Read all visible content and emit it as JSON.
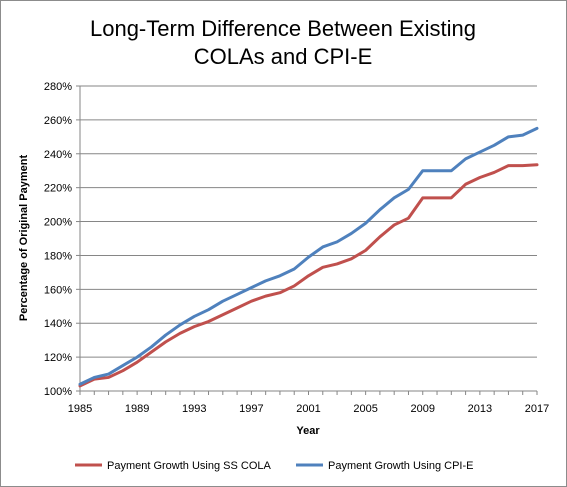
{
  "chart_data": {
    "type": "line",
    "title_lines": [
      "Long-Term Difference Between Existing",
      "COLAs and CPI-E"
    ],
    "xlabel": "Year",
    "ylabel": "Percentage of Original Payment",
    "xlim": [
      1985,
      2017
    ],
    "ylim": [
      100,
      280
    ],
    "x_ticks": [
      1985,
      1989,
      1993,
      1997,
      2001,
      2005,
      2009,
      2013,
      2017
    ],
    "y_ticks": [
      "100%",
      "120%",
      "140%",
      "160%",
      "180%",
      "200%",
      "220%",
      "240%",
      "260%",
      "280%"
    ],
    "grid": "horizontal",
    "legend_position": "bottom",
    "x": [
      1985,
      1986,
      1987,
      1988,
      1989,
      1990,
      1991,
      1992,
      1993,
      1994,
      1995,
      1996,
      1997,
      1998,
      1999,
      2000,
      2001,
      2002,
      2003,
      2004,
      2005,
      2006,
      2007,
      2008,
      2009,
      2010,
      2011,
      2012,
      2013,
      2014,
      2015,
      2016,
      2017
    ],
    "series": [
      {
        "name": "Payment Growth Using SS COLA",
        "color": "#c0504d",
        "values": [
          103,
          107,
          108,
          112,
          117,
          123,
          129,
          134,
          138,
          141,
          145,
          149,
          153,
          156,
          158,
          162,
          168,
          173,
          175,
          178,
          183,
          191,
          198,
          202,
          214,
          214,
          214,
          222,
          226,
          229,
          233,
          233,
          233.5
        ]
      },
      {
        "name": "Payment Growth Using CPI-E",
        "color": "#4f81bd",
        "values": [
          104,
          108,
          110,
          115,
          120,
          126,
          133,
          139,
          144,
          148,
          153,
          157,
          161,
          165,
          168,
          172,
          179,
          185,
          188,
          193,
          199,
          207,
          214,
          219,
          230,
          230,
          230,
          237,
          241,
          245,
          250,
          251,
          255
        ]
      }
    ]
  }
}
